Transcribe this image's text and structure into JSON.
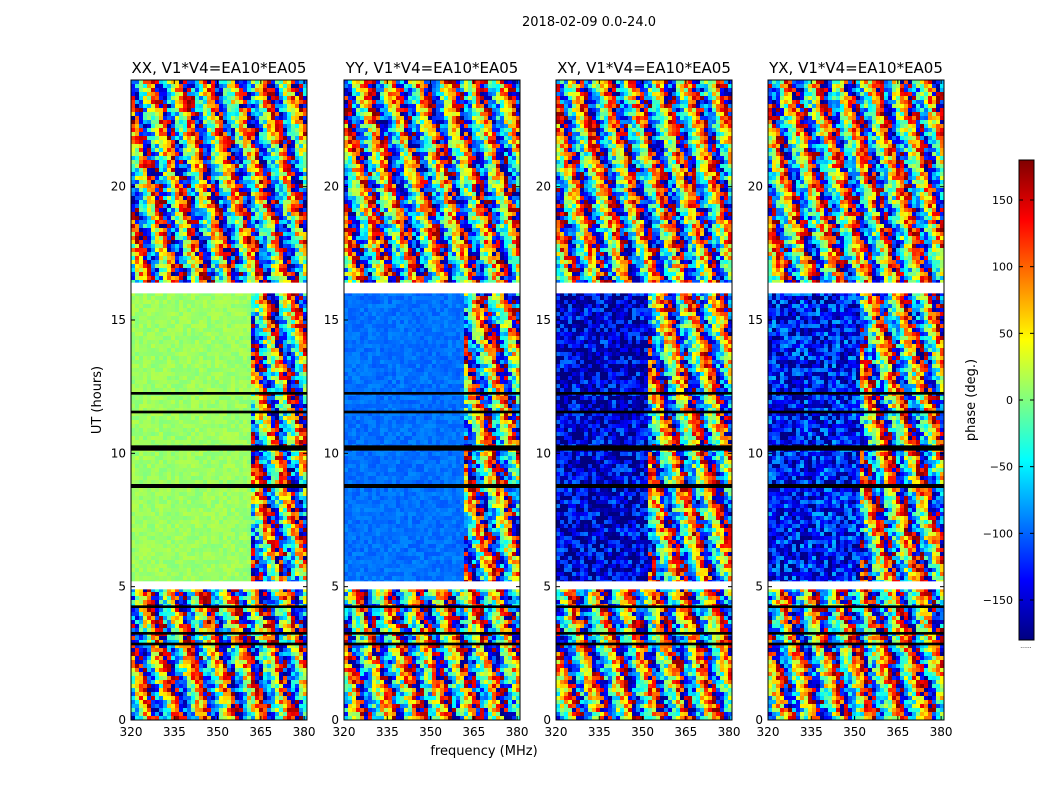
{
  "figure_title": "2018-02-09 0.0-24.0",
  "colormap": [
    "#000080",
    "#0000ff",
    "#0080ff",
    "#00ffff",
    "#80ff80",
    "#ffff00",
    "#ff8000",
    "#ff0000",
    "#800000"
  ],
  "chart_data": [
    {
      "type": "heatmap",
      "title": "XX, V1*V4=EA10*EA05",
      "xlabel": "",
      "ylabel": "UT (hours)",
      "xlim": [
        320,
        381
      ],
      "ylim": [
        0,
        24
      ],
      "xticks": [
        320,
        335,
        350,
        365,
        380
      ],
      "yticks": [
        0,
        5,
        10,
        15,
        20
      ],
      "calibrated_phase": 10,
      "description_value": "phase (deg.) vs frequency (MHz) and UT"
    },
    {
      "type": "heatmap",
      "title": "YY, V1*V4=EA10*EA05",
      "xlabel": "frequency (MHz)",
      "ylabel": "",
      "xlim": [
        320,
        381
      ],
      "ylim": [
        0,
        24
      ],
      "xticks": [
        320,
        335,
        350,
        365,
        380
      ],
      "yticks": [
        0,
        5,
        10,
        15,
        20
      ],
      "calibrated_phase": -95,
      "description_value": "phase (deg.) vs frequency (MHz) and UT"
    },
    {
      "type": "heatmap",
      "title": "XY, V1*V4=EA10*EA05",
      "xlabel": "",
      "ylabel": "",
      "xlim": [
        320,
        381
      ],
      "ylim": [
        0,
        24
      ],
      "xticks": [
        320,
        335,
        350,
        365,
        380
      ],
      "yticks": [
        0,
        5,
        10,
        15,
        20
      ],
      "calibrated_phase": -150,
      "description_value": "phase (deg.) vs frequency (MHz) and UT"
    },
    {
      "type": "heatmap",
      "title": "YX, V1*V4=EA10*EA05",
      "xlabel": "",
      "ylabel": "",
      "xlim": [
        320,
        381
      ],
      "ylim": [
        0,
        24
      ],
      "xticks": [
        320,
        335,
        350,
        365,
        380
      ],
      "yticks": [
        0,
        5,
        10,
        15,
        20
      ],
      "calibrated_phase": -130,
      "description_value": "phase (deg.) vs frequency (MHz) and UT"
    }
  ],
  "colorbar": {
    "label": "phase (deg.)",
    "range": [
      -180,
      180
    ],
    "ticks": [
      -150,
      -100,
      -50,
      0,
      50,
      100,
      150
    ],
    "tick_labels": [
      "−150",
      "−100",
      "−50",
      "0",
      "50",
      "100",
      "150"
    ],
    "footer_text": "......"
  }
}
